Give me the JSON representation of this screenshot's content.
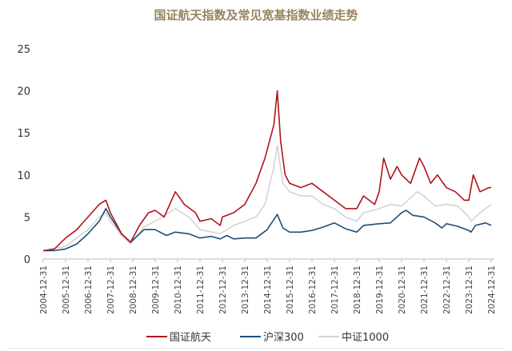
{
  "chart_data": {
    "type": "line",
    "title": "国证航天指数及常见宽基指数业绩走势",
    "xlabel": "",
    "ylabel": "",
    "ylim": [
      0,
      25
    ],
    "yticks": [
      "0",
      "5",
      "10",
      "15",
      "20",
      "25"
    ],
    "xlim": [
      2005.0,
      2025.0
    ],
    "xticks": [
      "2004-12-31",
      "2005-12-31",
      "2006-12-31",
      "2007-12-31",
      "2008-12-31",
      "2009-12-31",
      "2010-12-31",
      "2011-12-31",
      "2012-12-31",
      "2013-12-31",
      "2014-12-31",
      "2015-12-31",
      "2016-12-31",
      "2017-12-31",
      "2018-12-31",
      "2019-12-31",
      "2020-12-31",
      "2021-12-31",
      "2022-12-31",
      "2023-12-31",
      "2024-12-31"
    ],
    "grid": false,
    "legend_position": "bottom",
    "series": [
      {
        "name": "中证1000",
        "color": "#d4d4d4",
        "x": [
          2005,
          2006,
          2006.5,
          2007,
          2007.5,
          2007.8,
          2008,
          2008.5,
          2008.9,
          2009.5,
          2010,
          2010.9,
          2011.5,
          2012,
          2012.9,
          2013.5,
          2014,
          2014.5,
          2014.9,
          2015.3,
          2015.45,
          2015.7,
          2016,
          2016.5,
          2017,
          2017.5,
          2018,
          2018.5,
          2019,
          2019.3,
          2020,
          2020.5,
          2021,
          2021.7,
          2022,
          2022.5,
          2023,
          2023.5,
          2024,
          2024.1,
          2024.5,
          2025
        ],
        "y": [
          1,
          1.5,
          2.5,
          3.5,
          5,
          5.5,
          4.5,
          2.8,
          1.8,
          3.8,
          4.5,
          6,
          5,
          3.5,
          3,
          4,
          4.5,
          5,
          6.5,
          11,
          13.5,
          9,
          8,
          7.5,
          7.5,
          6.5,
          6,
          5,
          4.5,
          5.5,
          6,
          6.5,
          6.3,
          8,
          7.5,
          6.3,
          6.5,
          6.3,
          5,
          4.5,
          5.5,
          6.5
        ]
      },
      {
        "name": "沪深300",
        "color": "#1f4e79",
        "x": [
          2005,
          2005.5,
          2006,
          2006.5,
          2007,
          2007.5,
          2007.8,
          2008,
          2008.5,
          2008.9,
          2009.5,
          2010,
          2010.5,
          2010.9,
          2011.5,
          2012,
          2012.5,
          2012.9,
          2013.2,
          2013.5,
          2014,
          2014.5,
          2015,
          2015.45,
          2015.7,
          2016,
          2016.5,
          2017,
          2017.5,
          2018,
          2018.5,
          2019,
          2019.3,
          2020,
          2020.5,
          2021,
          2021.2,
          2021.5,
          2022,
          2022.5,
          2022.8,
          2023,
          2023.5,
          2024,
          2024.1,
          2024.3,
          2024.75,
          2025
        ],
        "y": [
          1,
          1,
          1.2,
          1.8,
          3,
          4.5,
          6,
          5,
          3,
          2,
          3.5,
          3.5,
          2.8,
          3.2,
          3,
          2.5,
          2.7,
          2.4,
          2.8,
          2.4,
          2.5,
          2.5,
          3.5,
          5.3,
          3.7,
          3.2,
          3.2,
          3.4,
          3.8,
          4.3,
          3.6,
          3.2,
          4,
          4.2,
          4.3,
          5.5,
          5.8,
          5.2,
          5,
          4.3,
          3.7,
          4.2,
          3.9,
          3.4,
          3.2,
          4,
          4.3,
          4
        ]
      },
      {
        "name": "国证航天",
        "color": "#b0141c",
        "x": [
          2005,
          2005.5,
          2006,
          2006.5,
          2007,
          2007.5,
          2007.8,
          2008,
          2008.5,
          2008.9,
          2009.3,
          2009.7,
          2010,
          2010.4,
          2010.9,
          2011.3,
          2011.8,
          2012,
          2012.5,
          2012.9,
          2013,
          2013.5,
          2014,
          2014.5,
          2014.9,
          2015.3,
          2015.45,
          2015.6,
          2015.8,
          2016,
          2016.5,
          2017,
          2017.5,
          2018,
          2018.5,
          2019,
          2019.3,
          2019.8,
          2020,
          2020.2,
          2020.5,
          2020.8,
          2021,
          2021.4,
          2021.8,
          2022,
          2022.3,
          2022.6,
          2023,
          2023.4,
          2023.8,
          2024,
          2024.2,
          2024.5,
          2024.9,
          2025
        ],
        "y": [
          1,
          1.2,
          2.5,
          3.5,
          5,
          6.5,
          7,
          5.5,
          3,
          2,
          4,
          5.5,
          5.8,
          5,
          8,
          6.5,
          5.5,
          4.5,
          4.8,
          4,
          5,
          5.5,
          6.5,
          9,
          12,
          16,
          20,
          14,
          10,
          9,
          8.5,
          9,
          8,
          7,
          6,
          6,
          7.5,
          6.5,
          8,
          12,
          9.5,
          11,
          10,
          9,
          12,
          11,
          9,
          10,
          8.5,
          8,
          7,
          7,
          10,
          8,
          8.5,
          8.5
        ]
      }
    ]
  }
}
